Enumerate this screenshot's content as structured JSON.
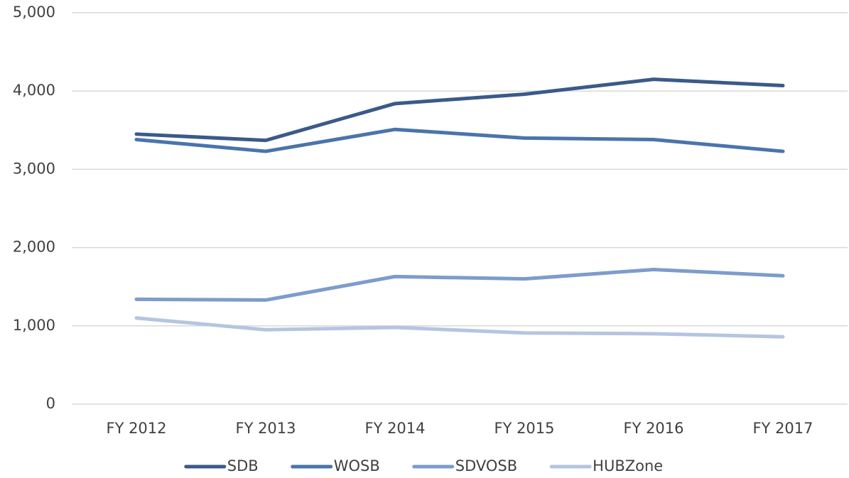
{
  "chart_data": {
    "type": "line",
    "categories": [
      "FY 2012",
      "FY 2013",
      "FY 2014",
      "FY 2015",
      "FY 2016",
      "FY 2017"
    ],
    "series": [
      {
        "name": "SDB",
        "color": "#3a5a89",
        "values": [
          3450,
          3370,
          3840,
          3960,
          4150,
          4070
        ]
      },
      {
        "name": "WOSB",
        "color": "#4a74ab",
        "values": [
          3380,
          3230,
          3510,
          3400,
          3380,
          3230
        ]
      },
      {
        "name": "SDVOSB",
        "color": "#7d9ccb",
        "values": [
          1340,
          1330,
          1630,
          1600,
          1720,
          1640
        ]
      },
      {
        "name": "HUBZone",
        "color": "#b5c5e0",
        "values": [
          1100,
          950,
          980,
          910,
          900,
          860
        ]
      }
    ],
    "ylim": [
      0,
      5000
    ],
    "yticks": [
      0,
      {
        "value": 1000,
        "label": "1,000"
      },
      {
        "value": 2000,
        "label": "2,000"
      },
      {
        "value": 3000,
        "label": "3,000"
      },
      {
        "value": 4000,
        "label": "4,000"
      },
      {
        "value": 5000,
        "label": "5,000"
      }
    ],
    "grid": true,
    "legend": "bottom"
  }
}
